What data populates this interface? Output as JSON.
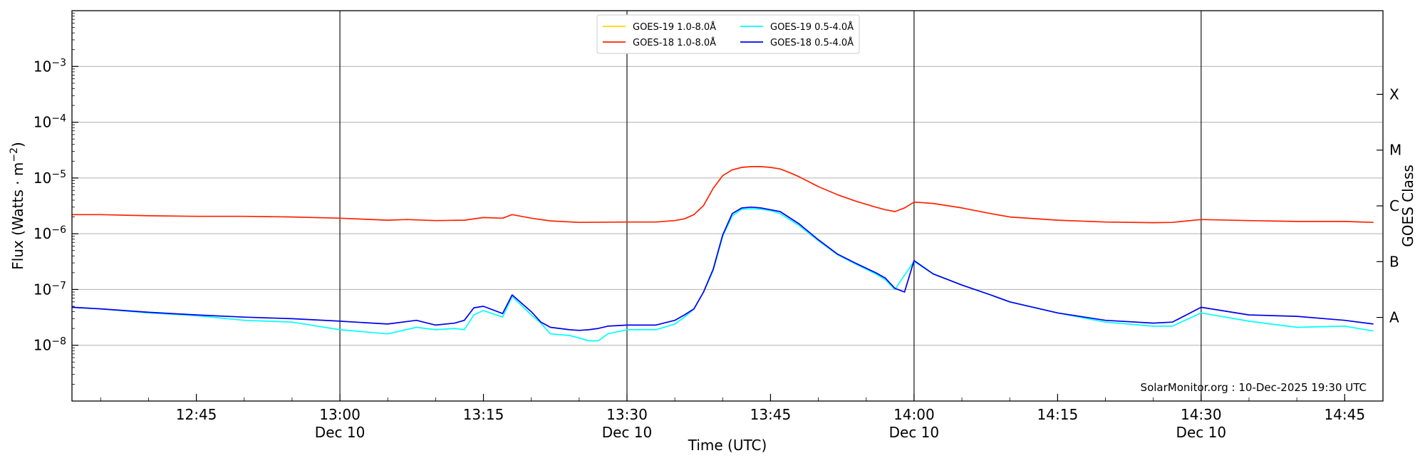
{
  "chart_data": {
    "type": "line",
    "xlabel": "Time (UTC)",
    "ylabel": "Flux (Watts · m",
    "ylabel_exponent": "−2",
    "ylabel_close": ")",
    "right_label": "GOES Class",
    "watermark": "SolarMonitor.org : 10-Dec-2025 19:30 UTC",
    "log_scale_y": true,
    "grid": "horizontal",
    "legend_position": "top-center",
    "xlim": [
      "12:32",
      "14:49"
    ],
    "ylim": [
      1e-09,
      0.01
    ],
    "x_ticks": [
      {
        "time": "12:45",
        "date": ""
      },
      {
        "time": "13:00",
        "date": "Dec 10"
      },
      {
        "time": "13:15",
        "date": ""
      },
      {
        "time": "13:30",
        "date": "Dec 10"
      },
      {
        "time": "13:45",
        "date": ""
      },
      {
        "time": "14:00",
        "date": "Dec 10"
      },
      {
        "time": "14:15",
        "date": ""
      },
      {
        "time": "14:30",
        "date": "Dec 10"
      },
      {
        "time": "14:45",
        "date": ""
      }
    ],
    "y_ticks": [
      {
        "value": 1e-08,
        "base": "10",
        "exp": "−8"
      },
      {
        "value": 1e-07,
        "base": "10",
        "exp": "−7"
      },
      {
        "value": 1e-06,
        "base": "10",
        "exp": "−6"
      },
      {
        "value": 1e-05,
        "base": "10",
        "exp": "−5"
      },
      {
        "value": 0.0001,
        "base": "10",
        "exp": "−4"
      },
      {
        "value": 0.001,
        "base": "10",
        "exp": "−3"
      }
    ],
    "goes_classes": [
      {
        "label": "A",
        "value": 3.16e-08
      },
      {
        "label": "B",
        "value": 3.16e-07
      },
      {
        "label": "C",
        "value": 3.16e-06
      },
      {
        "label": "M",
        "value": 3.16e-05
      },
      {
        "label": "X",
        "value": 0.000316
      }
    ],
    "vertical_markers": [
      "13:00",
      "13:30",
      "14:00",
      "14:30"
    ],
    "series": [
      {
        "name": "GOES-19 1.0-8.0Å",
        "color": "#ffd700",
        "x": [],
        "values": []
      },
      {
        "name": "GOES-18 1.0-8.0Å",
        "color": "#ff2200",
        "x": [
          "12:32",
          "12:35",
          "12:40",
          "12:45",
          "12:50",
          "12:55",
          "13:00",
          "13:05",
          "13:07",
          "13:10",
          "13:13",
          "13:15",
          "13:17",
          "13:18",
          "13:20",
          "13:22",
          "13:25",
          "13:30",
          "13:33",
          "13:35",
          "13:36",
          "13:37",
          "13:38",
          "13:39",
          "13:40",
          "13:41",
          "13:42",
          "13:43",
          "13:44",
          "13:45",
          "13:46",
          "13:47",
          "13:48",
          "13:50",
          "13:52",
          "13:54",
          "13:56",
          "13:57",
          "13:58",
          "13:59",
          "14:00",
          "14:02",
          "14:05",
          "14:08",
          "14:10",
          "14:15",
          "14:20",
          "14:25",
          "14:27",
          "14:30",
          "14:35",
          "14:40",
          "14:45",
          "14:48"
        ],
        "values": [
          2.2e-06,
          2.2e-06,
          2.1e-06,
          2.05e-06,
          2.05e-06,
          2e-06,
          1.9e-06,
          1.75e-06,
          1.8e-06,
          1.72e-06,
          1.75e-06,
          1.95e-06,
          1.9e-06,
          2.2e-06,
          1.9e-06,
          1.7e-06,
          1.6e-06,
          1.62e-06,
          1.62e-06,
          1.72e-06,
          1.85e-06,
          2.2e-06,
          3.2e-06,
          6.5e-06,
          1.1e-05,
          1.4e-05,
          1.55e-05,
          1.6e-05,
          1.6e-05,
          1.55e-05,
          1.45e-05,
          1.25e-05,
          1.05e-05,
          7e-06,
          5e-06,
          3.8e-06,
          3e-06,
          2.7e-06,
          2.5e-06,
          2.9e-06,
          3.7e-06,
          3.5e-06,
          2.9e-06,
          2.3e-06,
          2e-06,
          1.75e-06,
          1.62e-06,
          1.58e-06,
          1.6e-06,
          1.8e-06,
          1.72e-06,
          1.66e-06,
          1.66e-06,
          1.6e-06
        ]
      },
      {
        "name": "GOES-19 0.5-4.0Å",
        "color": "#00ffff",
        "x": [
          "12:32",
          "12:35",
          "12:40",
          "12:45",
          "12:50",
          "12:55",
          "13:00",
          "13:05",
          "13:08",
          "13:10",
          "13:12",
          "13:13",
          "13:14",
          "13:15",
          "13:17",
          "13:18",
          "13:20",
          "13:21",
          "13:22",
          "13:24",
          "13:25",
          "13:26",
          "13:27",
          "13:28",
          "13:30",
          "13:33",
          "13:35",
          "13:36",
          "13:37",
          "13:38",
          "13:39",
          "13:40",
          "13:41",
          "13:42",
          "13:43",
          "13:44",
          "13:45",
          "13:46",
          "13:48",
          "13:50",
          "13:52",
          "13:54",
          "13:56",
          "13:57",
          "13:58",
          "13:59",
          "14:00",
          "14:02",
          "14:05",
          "14:08",
          "14:10",
          "14:15",
          "14:20",
          "14:25",
          "14:27",
          "14:30",
          "14:35",
          "14:40",
          "14:45",
          "14:48"
        ],
        "values": [
          4.8e-08,
          4.5e-08,
          3.8e-08,
          3.4e-08,
          2.8e-08,
          2.6e-08,
          1.9e-08,
          1.6e-08,
          2.1e-08,
          1.9e-08,
          2e-08,
          1.9e-08,
          3.5e-08,
          4.2e-08,
          3.2e-08,
          7.5e-08,
          3.5e-08,
          2.5e-08,
          1.6e-08,
          1.5e-08,
          1.35e-08,
          1.2e-08,
          1.2e-08,
          1.6e-08,
          1.9e-08,
          1.9e-08,
          2.4e-08,
          3.2e-08,
          4.5e-08,
          9e-08,
          2.2e-07,
          9e-07,
          2.1e-06,
          2.75e-06,
          2.8e-06,
          2.75e-06,
          2.6e-06,
          2.3e-06,
          1.4e-06,
          7.5e-07,
          4.2e-07,
          2.8e-07,
          1.9e-07,
          1.5e-07,
          1e-07,
          1.8e-07,
          3.2e-07,
          1.9e-07,
          1.2e-07,
          8e-08,
          6e-08,
          3.8e-08,
          2.6e-08,
          2.2e-08,
          2.2e-08,
          3.8e-08,
          2.7e-08,
          2.1e-08,
          2.2e-08,
          1.8e-08
        ]
      },
      {
        "name": "GOES-18 0.5-4.0Å",
        "color": "#0000ee",
        "x": [
          "12:32",
          "12:35",
          "12:40",
          "12:45",
          "12:50",
          "12:55",
          "13:00",
          "13:05",
          "13:08",
          "13:10",
          "13:12",
          "13:13",
          "13:14",
          "13:15",
          "13:17",
          "13:18",
          "13:20",
          "13:21",
          "13:22",
          "13:24",
          "13:25",
          "13:26",
          "13:27",
          "13:28",
          "13:30",
          "13:33",
          "13:35",
          "13:36",
          "13:37",
          "13:38",
          "13:39",
          "13:40",
          "13:41",
          "13:42",
          "13:43",
          "13:44",
          "13:45",
          "13:46",
          "13:48",
          "13:50",
          "13:52",
          "13:54",
          "13:56",
          "13:57",
          "13:58",
          "13:59",
          "14:00",
          "14:02",
          "14:05",
          "14:08",
          "14:10",
          "14:15",
          "14:20",
          "14:25",
          "14:27",
          "14:30",
          "14:35",
          "14:40",
          "14:45",
          "14:48"
        ],
        "values": [
          4.8e-08,
          4.5e-08,
          3.9e-08,
          3.5e-08,
          3.2e-08,
          3e-08,
          2.7e-08,
          2.4e-08,
          2.8e-08,
          2.3e-08,
          2.5e-08,
          2.8e-08,
          4.7e-08,
          5e-08,
          3.7e-08,
          8e-08,
          4e-08,
          2.6e-08,
          2.1e-08,
          1.9e-08,
          1.85e-08,
          1.9e-08,
          2e-08,
          2.2e-08,
          2.3e-08,
          2.3e-08,
          2.8e-08,
          3.5e-08,
          4.5e-08,
          9e-08,
          2.3e-07,
          9.5e-07,
          2.3e-06,
          2.9e-06,
          3e-06,
          2.9e-06,
          2.7e-06,
          2.5e-06,
          1.5e-06,
          7.8e-07,
          4.3e-07,
          2.9e-07,
          2e-07,
          1.6e-07,
          1.05e-07,
          9e-08,
          3.3e-07,
          1.9e-07,
          1.2e-07,
          8e-08,
          6e-08,
          3.8e-08,
          2.8e-08,
          2.5e-08,
          2.6e-08,
          4.8e-08,
          3.5e-08,
          3.3e-08,
          2.8e-08,
          2.4e-08
        ]
      }
    ]
  }
}
